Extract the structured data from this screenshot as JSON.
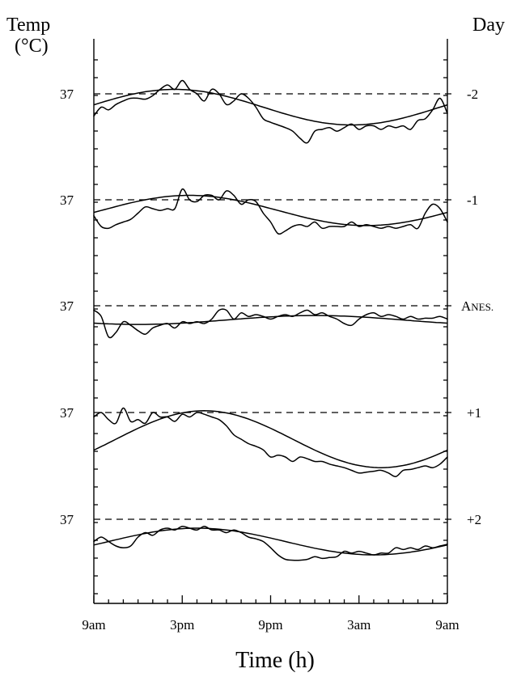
{
  "chart_data": {
    "type": "line",
    "ylabel_lines": [
      "Temp",
      "(°C)"
    ],
    "right_label": "Day",
    "xlabel": "Time (h)",
    "x_tick_labels": [
      "9am",
      "3pm",
      "9pm",
      "3am",
      "9am"
    ],
    "x_range_hours": [
      0,
      24
    ],
    "panels": [
      {
        "day_label": "-2",
        "ref_label": "37",
        "observed": {
          "x": [
            0,
            0.5,
            1,
            1.5,
            2,
            2.5,
            3,
            3.5,
            4,
            4.5,
            5,
            5.5,
            6,
            6.5,
            7,
            7.5,
            8,
            8.5,
            9,
            9.5,
            10,
            10.5,
            11,
            11.5,
            12,
            12.5,
            13,
            13.5,
            14,
            14.5,
            15,
            15.5,
            16,
            16.5,
            17,
            17.5,
            18,
            18.5,
            19,
            19.5,
            20,
            20.5,
            21,
            21.5,
            22,
            22.5,
            23,
            23.5,
            24
          ],
          "y": [
            -0.25,
            -0.15,
            -0.18,
            -0.12,
            -0.08,
            -0.05,
            -0.05,
            -0.06,
            -0.02,
            0.05,
            0.1,
            0.05,
            0.15,
            0.05,
            0.0,
            -0.08,
            0.05,
            0.0,
            -0.12,
            -0.08,
            0.0,
            -0.05,
            -0.15,
            -0.28,
            -0.32,
            -0.35,
            -0.38,
            -0.42,
            -0.5,
            -0.55,
            -0.42,
            -0.4,
            -0.38,
            -0.42,
            -0.38,
            -0.34,
            -0.4,
            -0.36,
            -0.36,
            -0.4,
            -0.36,
            -0.38,
            -0.36,
            -0.4,
            -0.3,
            -0.28,
            -0.18,
            -0.05,
            -0.22
          ]
        },
        "fit": {
          "mesor": -0.15,
          "amplitude": 0.2,
          "peak_hour": 5.5
        }
      },
      {
        "day_label": "-1",
        "ref_label": "37",
        "observed": {
          "x": [
            0,
            0.5,
            1,
            1.5,
            2,
            2.5,
            3,
            3.5,
            4,
            4.5,
            5,
            5.5,
            6,
            6.5,
            7,
            7.5,
            8,
            8.5,
            9,
            9.5,
            10,
            10.5,
            11,
            11.5,
            12,
            12.5,
            13,
            13.5,
            14,
            14.5,
            15,
            15.5,
            16,
            16.5,
            17,
            17.5,
            18,
            18.5,
            19,
            19.5,
            20,
            20.5,
            21,
            21.5,
            22,
            22.5,
            23,
            23.5,
            24
          ],
          "y": [
            -0.18,
            -0.3,
            -0.32,
            -0.28,
            -0.25,
            -0.22,
            -0.15,
            -0.08,
            -0.1,
            -0.12,
            -0.1,
            -0.1,
            0.12,
            0.0,
            -0.02,
            0.05,
            0.05,
            0.0,
            0.1,
            0.05,
            -0.05,
            0.0,
            -0.02,
            -0.15,
            -0.25,
            -0.38,
            -0.35,
            -0.3,
            -0.28,
            -0.3,
            -0.25,
            -0.32,
            -0.3,
            -0.3,
            -0.3,
            -0.25,
            -0.3,
            -0.28,
            -0.3,
            -0.32,
            -0.3,
            -0.32,
            -0.3,
            -0.28,
            -0.32,
            -0.15,
            -0.05,
            -0.1,
            -0.25
          ]
        },
        "fit": {
          "mesor": -0.12,
          "amplitude": 0.17,
          "peak_hour": 6.5
        }
      },
      {
        "day_label": "Anes.",
        "ref_label": "37",
        "observed": {
          "x": [
            0,
            0.5,
            1,
            1.5,
            2,
            2.5,
            3,
            3.5,
            4,
            4.5,
            5,
            5.5,
            6,
            6.5,
            7,
            7.5,
            8,
            8.5,
            9,
            9.5,
            10,
            10.5,
            11,
            11.5,
            12,
            12.5,
            13,
            13.5,
            14,
            14.5,
            15,
            15.5,
            16,
            16.5,
            17,
            17.5,
            18,
            18.5,
            19,
            19.5,
            20,
            20.5,
            21,
            21.5,
            22,
            22.5,
            23,
            23.5,
            24
          ],
          "y": [
            -0.05,
            -0.12,
            -0.35,
            -0.3,
            -0.18,
            -0.22,
            -0.28,
            -0.32,
            -0.25,
            -0.22,
            -0.2,
            -0.25,
            -0.18,
            -0.2,
            -0.18,
            -0.2,
            -0.15,
            -0.05,
            -0.05,
            -0.15,
            -0.08,
            -0.12,
            -0.1,
            -0.12,
            -0.15,
            -0.12,
            -0.1,
            -0.12,
            -0.08,
            -0.05,
            -0.1,
            -0.08,
            -0.12,
            -0.15,
            -0.2,
            -0.22,
            -0.15,
            -0.1,
            -0.08,
            -0.12,
            -0.1,
            -0.12,
            -0.15,
            -0.12,
            -0.15,
            -0.14,
            -0.14,
            -0.12,
            -0.15
          ]
        },
        "fit": {
          "mesor": -0.16,
          "amplitude": 0.05,
          "peak_hour": 15.0
        }
      },
      {
        "day_label": "+1",
        "ref_label": "37",
        "observed": {
          "x": [
            0,
            0.5,
            1,
            1.5,
            2,
            2.5,
            3,
            3.5,
            4,
            4.5,
            5,
            5.5,
            6,
            6.5,
            7,
            7.5,
            8,
            8.5,
            9,
            9.5,
            10,
            10.5,
            11,
            11.5,
            12,
            12.5,
            13,
            13.5,
            14,
            14.5,
            15,
            15.5,
            16,
            16.5,
            17,
            17.5,
            18,
            18.5,
            19,
            19.5,
            20,
            20.5,
            21,
            21.5,
            22,
            22.5,
            23,
            23.5,
            24
          ],
          "y": [
            -0.05,
            0.0,
            -0.08,
            -0.12,
            0.05,
            -0.1,
            -0.08,
            -0.12,
            0.0,
            -0.05,
            -0.05,
            -0.1,
            -0.02,
            -0.05,
            0.0,
            -0.02,
            -0.05,
            -0.08,
            -0.15,
            -0.25,
            -0.3,
            -0.35,
            -0.38,
            -0.42,
            -0.5,
            -0.48,
            -0.5,
            -0.55,
            -0.5,
            -0.52,
            -0.55,
            -0.55,
            -0.58,
            -0.6,
            -0.62,
            -0.65,
            -0.68,
            -0.67,
            -0.66,
            -0.65,
            -0.68,
            -0.72,
            -0.65,
            -0.64,
            -0.62,
            -0.6,
            -0.62,
            -0.58,
            -0.5
          ]
        },
        "fit": {
          "mesor": -0.3,
          "amplitude": 0.32,
          "peak_hour": 7.5
        }
      },
      {
        "day_label": "+2",
        "ref_label": "37",
        "observed": {
          "x": [
            0,
            0.5,
            1,
            1.5,
            2,
            2.5,
            3,
            3.5,
            4,
            4.5,
            5,
            5.5,
            6,
            6.5,
            7,
            7.5,
            8,
            8.5,
            9,
            9.5,
            10,
            10.5,
            11,
            11.5,
            12,
            12.5,
            13,
            13.5,
            14,
            14.5,
            15,
            15.5,
            16,
            16.5,
            17,
            17.5,
            18,
            18.5,
            19,
            19.5,
            20,
            20.5,
            21,
            21.5,
            22,
            22.5,
            23,
            23.5,
            24
          ],
          "y": [
            -0.25,
            -0.2,
            -0.25,
            -0.3,
            -0.32,
            -0.3,
            -0.2,
            -0.15,
            -0.18,
            -0.12,
            -0.1,
            -0.12,
            -0.08,
            -0.1,
            -0.12,
            -0.08,
            -0.12,
            -0.12,
            -0.15,
            -0.12,
            -0.15,
            -0.2,
            -0.22,
            -0.25,
            -0.32,
            -0.4,
            -0.45,
            -0.46,
            -0.46,
            -0.45,
            -0.42,
            -0.44,
            -0.43,
            -0.42,
            -0.36,
            -0.38,
            -0.36,
            -0.38,
            -0.4,
            -0.38,
            -0.38,
            -0.32,
            -0.34,
            -0.32,
            -0.34,
            -0.3,
            -0.32,
            -0.3,
            -0.28
          ]
        },
        "fit": {
          "mesor": -0.25,
          "amplitude": 0.15,
          "peak_hour": 7.0
        }
      }
    ]
  }
}
